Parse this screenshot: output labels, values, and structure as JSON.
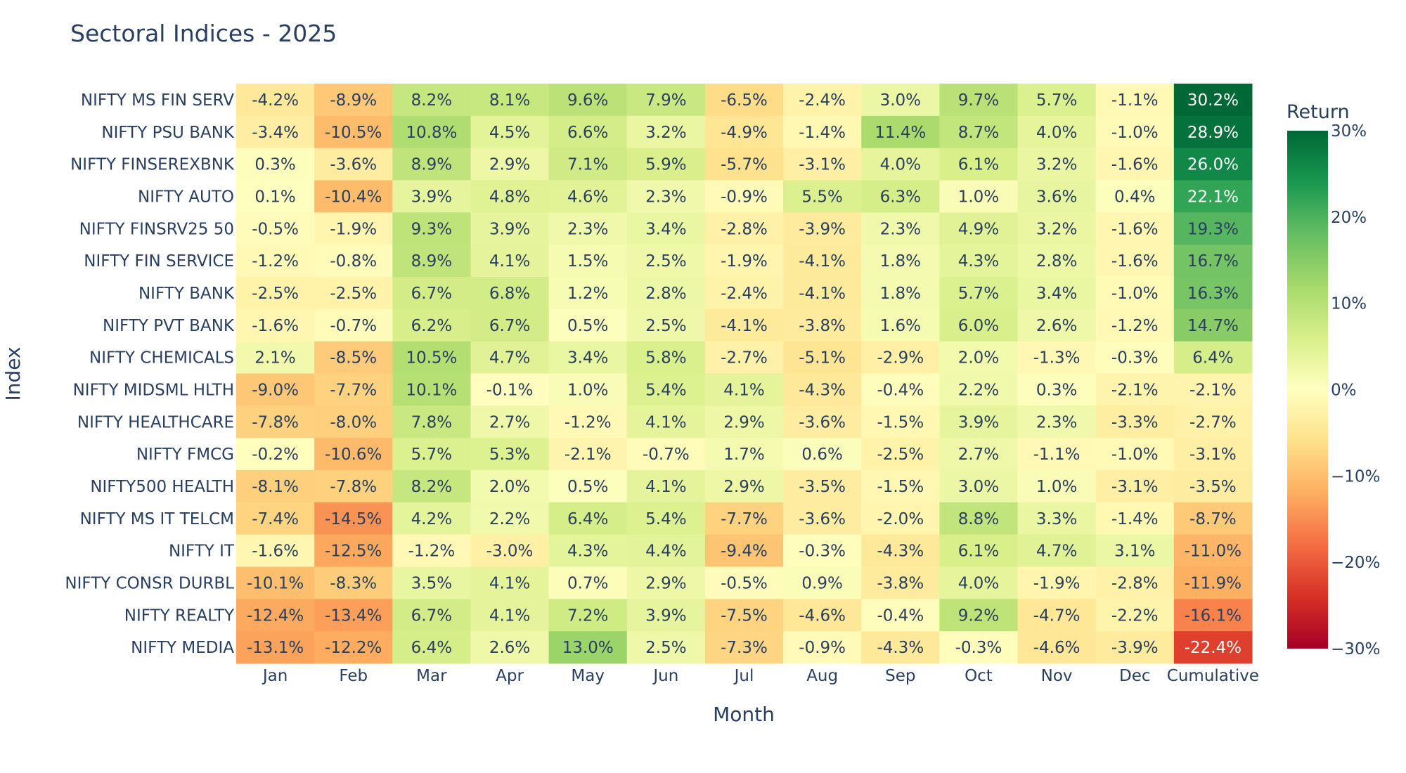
{
  "chart_data": {
    "type": "heatmap",
    "title": "Sectoral Indices - 2025",
    "xlabel": "Month",
    "ylabel": "Index",
    "colorbar_title": "Return",
    "colorscale": "RdYlGn",
    "zlim": [
      -30,
      30
    ],
    "colorbar_ticks": [
      "30%",
      "20%",
      "10%",
      "0%",
      "−10%",
      "−20%",
      "−30%"
    ],
    "colorbar_tick_values": [
      30,
      20,
      10,
      0,
      -10,
      -20,
      -30
    ],
    "x": [
      "Jan",
      "Feb",
      "Mar",
      "Apr",
      "May",
      "Jun",
      "Jul",
      "Aug",
      "Sep",
      "Oct",
      "Nov",
      "Dec",
      "Cumulative"
    ],
    "y": [
      "NIFTY MS FIN SERV",
      "NIFTY PSU BANK",
      "NIFTY FINSEREXBNK",
      "NIFTY AUTO",
      "NIFTY FINSRV25 50",
      "NIFTY FIN SERVICE",
      "NIFTY BANK",
      "NIFTY PVT BANK",
      "NIFTY CHEMICALS",
      "NIFTY MIDSML HLTH",
      "NIFTY HEALTHCARE",
      "NIFTY FMCG",
      "NIFTY500 HEALTH",
      "NIFTY MS IT TELCM",
      "NIFTY IT",
      "NIFTY CONSR DURBL",
      "NIFTY REALTY",
      "NIFTY MEDIA"
    ],
    "z": [
      [
        -4.2,
        -8.9,
        8.2,
        8.1,
        9.6,
        7.9,
        -6.5,
        -2.4,
        3.0,
        9.7,
        5.7,
        -1.1,
        30.2
      ],
      [
        -3.4,
        -10.5,
        10.8,
        4.5,
        6.6,
        3.2,
        -4.9,
        -1.4,
        11.4,
        8.7,
        4.0,
        -1.0,
        28.9
      ],
      [
        0.3,
        -3.6,
        8.9,
        2.9,
        7.1,
        5.9,
        -5.7,
        -3.1,
        4.0,
        6.1,
        3.2,
        -1.6,
        26.0
      ],
      [
        0.1,
        -10.4,
        3.9,
        4.8,
        4.6,
        2.3,
        -0.9,
        5.5,
        6.3,
        1.0,
        3.6,
        0.4,
        22.1
      ],
      [
        -0.5,
        -1.9,
        9.3,
        3.9,
        2.3,
        3.4,
        -2.8,
        -3.9,
        2.3,
        4.9,
        3.2,
        -1.6,
        19.3
      ],
      [
        -1.2,
        -0.8,
        8.9,
        4.1,
        1.5,
        2.5,
        -1.9,
        -4.1,
        1.8,
        4.3,
        2.8,
        -1.6,
        16.7
      ],
      [
        -2.5,
        -2.5,
        6.7,
        6.8,
        1.2,
        2.8,
        -2.4,
        -4.1,
        1.8,
        5.7,
        3.4,
        -1.0,
        16.3
      ],
      [
        -1.6,
        -0.7,
        6.2,
        6.7,
        0.5,
        2.5,
        -4.1,
        -3.8,
        1.6,
        6.0,
        2.6,
        -1.2,
        14.7
      ],
      [
        2.1,
        -8.5,
        10.5,
        4.7,
        3.4,
        5.8,
        -2.7,
        -5.1,
        -2.9,
        2.0,
        -1.3,
        -0.3,
        6.4
      ],
      [
        -9.0,
        -7.7,
        10.1,
        -0.1,
        1.0,
        5.4,
        4.1,
        -4.3,
        -0.4,
        2.2,
        0.3,
        -2.1,
        -2.1
      ],
      [
        -7.8,
        -8.0,
        7.8,
        2.7,
        -1.2,
        4.1,
        2.9,
        -3.6,
        -1.5,
        3.9,
        2.3,
        -3.3,
        -2.7
      ],
      [
        -0.2,
        -10.6,
        5.7,
        5.3,
        -2.1,
        -0.7,
        1.7,
        0.6,
        -2.5,
        2.7,
        -1.1,
        -1.0,
        -3.1
      ],
      [
        -8.1,
        -7.8,
        8.2,
        2.0,
        0.5,
        4.1,
        2.9,
        -3.5,
        -1.5,
        3.0,
        1.0,
        -3.1,
        -3.5
      ],
      [
        -7.4,
        -14.5,
        4.2,
        2.2,
        6.4,
        5.4,
        -7.7,
        -3.6,
        -2.0,
        8.8,
        3.3,
        -1.4,
        -8.7
      ],
      [
        -1.6,
        -12.5,
        -1.2,
        -3.0,
        4.3,
        4.4,
        -9.4,
        -0.3,
        -4.3,
        6.1,
        4.7,
        3.1,
        -11.0
      ],
      [
        -10.1,
        -8.3,
        3.5,
        4.1,
        0.7,
        2.9,
        -0.5,
        0.9,
        -3.8,
        4.0,
        -1.9,
        -2.8,
        -11.9
      ],
      [
        -12.4,
        -13.4,
        6.7,
        4.1,
        7.2,
        3.9,
        -7.5,
        -4.6,
        -0.4,
        9.2,
        -4.7,
        -2.2,
        -16.1
      ],
      [
        -13.1,
        -12.2,
        6.4,
        2.6,
        13.0,
        2.5,
        -7.3,
        -0.9,
        -4.3,
        -0.3,
        -4.6,
        -3.9,
        -22.4
      ]
    ],
    "text_color": "#2a3f5f"
  }
}
